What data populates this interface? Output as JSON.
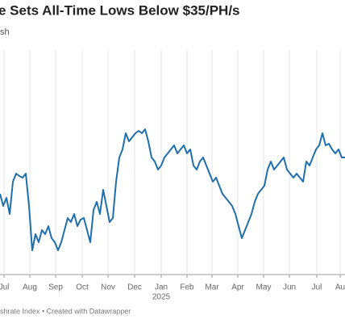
{
  "chart_data": {
    "type": "line",
    "title": "e Sets All-Time Lows Below $35/PH/s",
    "subtitle": "sh",
    "footer": "shrate Index • Created with Datawrapper",
    "year_label": "2025",
    "color": "#1f6fad",
    "grid": true,
    "xlim": [
      0,
      107
    ],
    "ylim": [
      0,
      278
    ],
    "xticks": [
      {
        "value": 1.25,
        "label": "Jul"
      },
      {
        "value": 9.25,
        "label": "Aug"
      },
      {
        "value": 17.25,
        "label": "Sep"
      },
      {
        "value": 25.5,
        "label": "Oct"
      },
      {
        "value": 33.5,
        "label": "Nov"
      },
      {
        "value": 41.75,
        "label": "Dec"
      },
      {
        "value": 50,
        "label": "Jan"
      },
      {
        "value": 58,
        "label": "Feb"
      },
      {
        "value": 65.75,
        "label": "Mar"
      },
      {
        "value": 73.75,
        "label": "Apr"
      },
      {
        "value": 81.75,
        "label": "May"
      },
      {
        "value": 89.75,
        "label": "Jun"
      },
      {
        "value": 98.25,
        "label": "Jul"
      },
      {
        "value": 105.5,
        "label": "Au"
      }
    ],
    "values": [
      100,
      85,
      95,
      75,
      115,
      125,
      122,
      120,
      125,
      85,
      30,
      50,
      40,
      55,
      50,
      60,
      45,
      40,
      30,
      40,
      55,
      70,
      65,
      75,
      60,
      68,
      70,
      55,
      40,
      80,
      90,
      75,
      105,
      85,
      65,
      70,
      115,
      145,
      155,
      175,
      165,
      170,
      175,
      178,
      175,
      180,
      165,
      145,
      140,
      130,
      135,
      145,
      150,
      155,
      160,
      150,
      155,
      160,
      150,
      155,
      135,
      130,
      140,
      145,
      135,
      125,
      115,
      120,
      110,
      100,
      95,
      90,
      85,
      75,
      60,
      45,
      55,
      65,
      75,
      90,
      100,
      105,
      110,
      130,
      140,
      130,
      135,
      140,
      145,
      130,
      125,
      120,
      125,
      120,
      115,
      140,
      135,
      145,
      155,
      160,
      175,
      160,
      162,
      155,
      150,
      155,
      145,
      145
    ]
  }
}
